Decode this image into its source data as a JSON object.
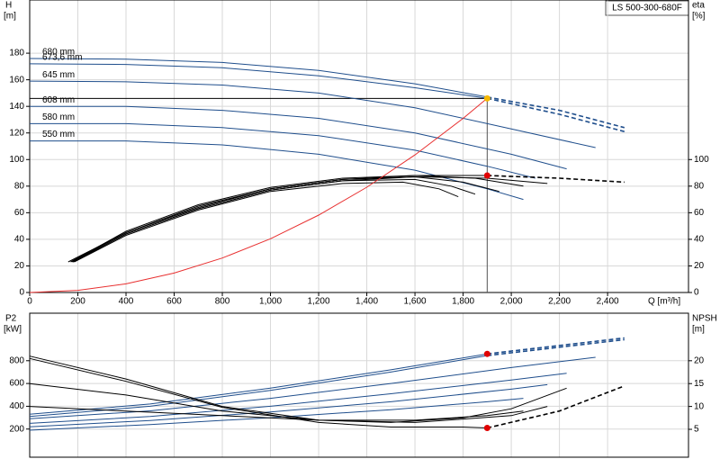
{
  "chart_data": [
    {
      "type": "line",
      "title": "LS 500-300-680F",
      "x_label": "Q [m³/h]",
      "y_label": "H",
      "y_unit": "[m]",
      "y2_label": "eta",
      "y2_unit": "[%]",
      "xlim": [
        0,
        2736
      ],
      "xticks": [
        0,
        200,
        400,
        600,
        800,
        {
          "value": 1000,
          "label": "1,000"
        },
        {
          "value": 1200,
          "label": "1,200"
        },
        {
          "value": 1400,
          "label": "1,400"
        },
        {
          "value": 1600,
          "label": "1,600"
        },
        {
          "value": 1800,
          "label": "1,800"
        },
        {
          "value": 2000,
          "label": "2,000"
        },
        {
          "value": 2200,
          "label": "2,200"
        },
        {
          "value": 2400,
          "label": "2,400"
        }
      ],
      "ylim": [
        0,
        220
      ],
      "yticks": [
        0,
        20,
        40,
        60,
        80,
        100,
        120,
        140,
        160,
        180
      ],
      "y2lim": [
        0,
        220
      ],
      "y2ticks": [
        0,
        20,
        40,
        60,
        80,
        100
      ],
      "grid": true,
      "guides": true,
      "series": [
        {
          "name": "680 mm",
          "color": "#1f4e8c",
          "x": [
            0,
            400,
            800,
            1200,
            1600,
            1900
          ],
          "values": [
            176,
            175.5,
            173,
            167,
            157,
            147
          ]
        },
        {
          "color": "#1f4e8c",
          "dash": true,
          "x": [
            1900,
            2200,
            2470
          ],
          "values": [
            147,
            137,
            124
          ]
        },
        {
          "name": "673,6 mm",
          "color": "#1f4e8c",
          "x": [
            0,
            400,
            800,
            1200,
            1600,
            1900
          ],
          "values": [
            172,
            171.5,
            169,
            163,
            154,
            146
          ]
        },
        {
          "color": "#1f4e8c",
          "dash": true,
          "x": [
            1900,
            2200,
            2470
          ],
          "values": [
            146,
            134,
            121
          ]
        },
        {
          "name": "645 mm",
          "color": "#1f4e8c",
          "x": [
            0,
            400,
            800,
            1200,
            1600,
            2000,
            2350
          ],
          "values": [
            159,
            158.5,
            156,
            150,
            139,
            123,
            109
          ]
        },
        {
          "name": "608 mm",
          "color": "#1f4e8c",
          "x": [
            0,
            400,
            800,
            1200,
            1600,
            2000,
            2230
          ],
          "values": [
            140,
            140,
            137,
            131,
            120,
            104,
            93
          ]
        },
        {
          "name": "580 mm",
          "color": "#1f4e8c",
          "x": [
            0,
            400,
            800,
            1200,
            1600,
            1900,
            2100
          ],
          "values": [
            127,
            127,
            124,
            118,
            107,
            95,
            86
          ]
        },
        {
          "name": "550 mm",
          "color": "#1f4e8c",
          "x": [
            0,
            400,
            800,
            1200,
            1600,
            1900,
            2050
          ],
          "values": [
            114,
            114,
            111,
            104,
            92,
            78,
            70
          ]
        },
        {
          "color": "#000000",
          "axis": "y2",
          "x": [
            160,
            400,
            700,
            1000,
            1300,
            1600,
            1900
          ],
          "values": [
            23,
            45,
            65,
            78,
            85,
            88,
            88
          ]
        },
        {
          "color": "#000000",
          "axis": "y2",
          "dash": true,
          "x": [
            1900,
            2200,
            2470
          ],
          "values": [
            88,
            86,
            83
          ]
        },
        {
          "color": "#000000",
          "axis": "y2",
          "x": [
            180,
            400,
            700,
            1000,
            1300,
            1600,
            1900,
            2150
          ],
          "values": [
            23,
            44,
            63,
            77,
            84,
            87,
            86,
            82
          ]
        },
        {
          "color": "#000000",
          "axis": "y2",
          "x": [
            170,
            400,
            700,
            1000,
            1300,
            1600,
            1850,
            2050
          ],
          "values": [
            23,
            46,
            66,
            79,
            86,
            88,
            86,
            80
          ]
        },
        {
          "color": "#000000",
          "axis": "y2",
          "x": [
            175,
            400,
            700,
            1000,
            1300,
            1600,
            1800,
            1950
          ],
          "values": [
            23,
            45,
            64,
            78,
            85,
            87,
            83,
            76
          ]
        },
        {
          "color": "#000000",
          "axis": "y2",
          "x": [
            180,
            400,
            700,
            1000,
            1300,
            1600,
            1750,
            1850
          ],
          "values": [
            23,
            44,
            63,
            77,
            84,
            85,
            80,
            74
          ]
        },
        {
          "color": "#000000",
          "axis": "y2",
          "x": [
            185,
            400,
            700,
            1000,
            1300,
            1550,
            1700,
            1780
          ],
          "values": [
            23,
            43,
            62,
            76,
            82,
            83,
            78,
            72
          ]
        },
        {
          "color": "#e83030",
          "x": [
            0,
            200,
            400,
            600,
            800,
            1000,
            1200,
            1400,
            1600,
            1800,
            1900
          ],
          "values": [
            0,
            1.6,
            6.5,
            14.6,
            25.9,
            40.4,
            58.2,
            79.2,
            103.5,
            131,
            146
          ]
        }
      ],
      "duty_point": {
        "x": 1900,
        "y": 146,
        "y2": 88,
        "y_color": "#f5b800",
        "y2_color": "#e00000"
      }
    },
    {
      "type": "line",
      "y_label": "P2",
      "y_unit": "[kW]",
      "y2_label": "NPSH",
      "y2_unit": "[m]",
      "xlim": [
        0,
        2736
      ],
      "ylim": [
        -47,
        1217
      ],
      "yticks": [
        200,
        400,
        600,
        800
      ],
      "y2lim": [
        -1.1,
        30.4
      ],
      "y2ticks": [
        5,
        10,
        15,
        20
      ],
      "grid": true,
      "series": [
        {
          "color": "#1f4e8c",
          "x": [
            0,
            500,
            1000,
            1500,
            1900
          ],
          "values": [
            330,
            420,
            560,
            720,
            860
          ]
        },
        {
          "color": "#1f4e8c",
          "dash": true,
          "x": [
            1900,
            2470
          ],
          "values": [
            860,
            1000
          ]
        },
        {
          "color": "#1f4e8c",
          "x": [
            0,
            500,
            1000,
            1500,
            1900
          ],
          "values": [
            310,
            400,
            540,
            700,
            845
          ]
        },
        {
          "color": "#1f4e8c",
          "dash": true,
          "x": [
            1900,
            2470
          ],
          "values": [
            845,
            985
          ]
        },
        {
          "color": "#1f4e8c",
          "x": [
            0,
            500,
            1000,
            1500,
            2000,
            2350
          ],
          "values": [
            290,
            360,
            470,
            600,
            740,
            830
          ]
        },
        {
          "color": "#1f4e8c",
          "x": [
            0,
            500,
            1000,
            1500,
            2000,
            2230
          ],
          "values": [
            250,
            310,
            400,
            510,
            630,
            690
          ]
        },
        {
          "color": "#1f4e8c",
          "x": [
            0,
            500,
            1000,
            1500,
            2000,
            2150
          ],
          "values": [
            220,
            275,
            350,
            440,
            550,
            590
          ]
        },
        {
          "color": "#1f4e8c",
          "x": [
            0,
            500,
            1000,
            1500,
            1900,
            2050
          ],
          "values": [
            190,
            240,
            300,
            370,
            440,
            470
          ]
        },
        {
          "color": "#000000",
          "axis": "y2",
          "x": [
            0,
            400,
            800,
            1200,
            1500,
            1800,
            2000,
            2230
          ],
          "values": [
            21,
            16,
            10,
            7,
            6.5,
            7.5,
            9.5,
            14
          ]
        },
        {
          "color": "#000000",
          "axis": "y2",
          "x": [
            0,
            400,
            800,
            1200,
            1500,
            1800,
            1900
          ],
          "values": [
            20.5,
            15.5,
            9.8,
            6.5,
            5.5,
            5.5,
            5.3
          ]
        },
        {
          "color": "#000000",
          "axis": "y2",
          "dash": true,
          "x": [
            1900,
            2200,
            2470
          ],
          "values": [
            5.3,
            9,
            14.5
          ]
        },
        {
          "color": "#000000",
          "axis": "y2",
          "x": [
            0,
            400,
            800,
            1200,
            1600,
            2000,
            2150
          ],
          "values": [
            15,
            12.5,
            9,
            7,
            6.5,
            8,
            10
          ]
        },
        {
          "color": "#000000",
          "axis": "y2",
          "x": [
            0,
            400,
            800,
            1200,
            1600,
            1900,
            2050
          ],
          "values": [
            10,
            9,
            8,
            7,
            7,
            8,
            9
          ]
        }
      ],
      "duty_point": {
        "x": 1900,
        "y": 860,
        "y2": 5.3,
        "y_color": "#e00000",
        "y2_color": "#e00000"
      }
    }
  ]
}
